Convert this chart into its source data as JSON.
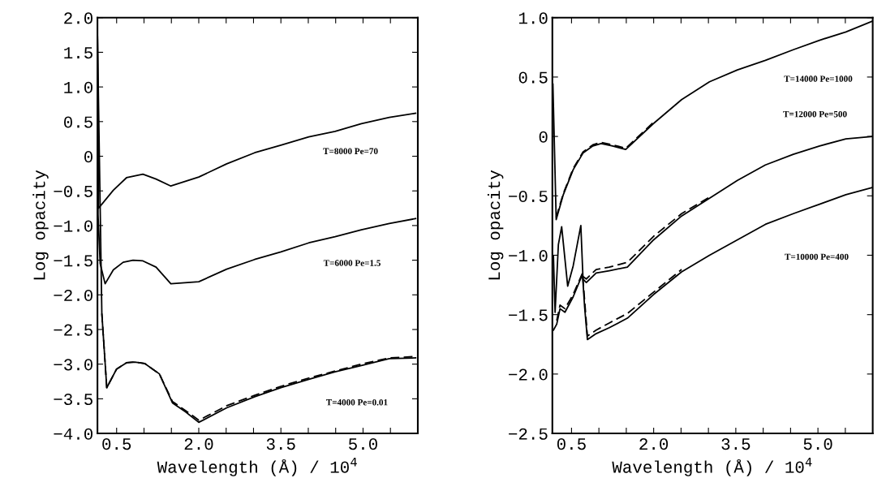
{
  "chart_data": [
    {
      "type": "line",
      "xlabel": "Wavelength (Å) / 10$^{4}$",
      "ylabel": "Log opacity",
      "xlim": [
        0.15,
        6.0
      ],
      "ylim": [
        -4.0,
        2.0
      ],
      "xticks": [
        {
          "value": 0.5,
          "label": "0.5"
        },
        {
          "value": 1.0,
          "label": null
        },
        {
          "value": 1.5,
          "label": null
        },
        {
          "value": 2.0,
          "label": "2.0"
        },
        {
          "value": 2.5,
          "label": null
        },
        {
          "value": 3.0,
          "label": null
        },
        {
          "value": 3.5,
          "label": "3.5"
        },
        {
          "value": 4.0,
          "label": null
        },
        {
          "value": 4.5,
          "label": null
        },
        {
          "value": 5.0,
          "label": "5.0"
        },
        {
          "value": 5.5,
          "label": null
        }
      ],
      "yticks": [
        {
          "value": -4.0,
          "label": "−4.0"
        },
        {
          "value": -3.5,
          "label": "−3.5"
        },
        {
          "value": -3.0,
          "label": "−3.0"
        },
        {
          "value": -2.5,
          "label": "−2.5"
        },
        {
          "value": -2.0,
          "label": "−2.0"
        },
        {
          "value": -1.5,
          "label": "−1.5"
        },
        {
          "value": -1.0,
          "label": "−1.0"
        },
        {
          "value": -0.5,
          "label": "−0.5"
        },
        {
          "value": 0,
          "label": "0"
        },
        {
          "value": 0.5,
          "label": "0.5"
        },
        {
          "value": 1.0,
          "label": "1.0"
        },
        {
          "value": 1.5,
          "label": "1.5"
        },
        {
          "value": 2.0,
          "label": "2.0"
        }
      ],
      "grid": false,
      "legend": false,
      "marker": "none",
      "series": [
        {
          "color": "#000000",
          "line_style": "solid",
          "x": [
            0.15,
            0.17,
            0.44,
            0.68,
            0.98,
            1.22,
            1.49,
            2.0,
            2.51,
            3.02,
            3.5,
            4.01,
            4.49,
            4.97,
            5.48,
            5.96
          ],
          "values": [
            1.75,
            -0.75,
            -0.49,
            -0.31,
            -0.26,
            -0.33,
            -0.43,
            -0.3,
            -0.11,
            0.05,
            0.16,
            0.28,
            0.36,
            0.47,
            0.56,
            0.62
          ]
        },
        {
          "color": "#000000",
          "line_style": "solid",
          "x": [
            0.15,
            0.16,
            0.2,
            0.29,
            0.44,
            0.62,
            0.8,
            0.98,
            1.22,
            1.49,
            2.0,
            2.51,
            3.02,
            3.5,
            4.01,
            4.49,
            4.97,
            5.48,
            5.96
          ],
          "values": [
            1.75,
            -0.84,
            -1.55,
            -1.84,
            -1.64,
            -1.53,
            -1.5,
            -1.51,
            -1.6,
            -1.84,
            -1.81,
            -1.63,
            -1.49,
            -1.38,
            -1.25,
            -1.16,
            -1.06,
            -0.97,
            -0.9
          ]
        },
        {
          "color": "#000000",
          "line_style": "solid",
          "x": [
            0.15,
            0.23,
            0.32,
            0.5,
            0.68,
            0.83,
            1.01,
            1.28,
            1.52,
            1.76,
            2.0,
            2.51,
            3.02,
            3.5,
            4.01,
            4.49,
            4.97,
            5.48,
            5.96
          ],
          "values": [
            1.75,
            -2.27,
            -3.34,
            -3.07,
            -2.98,
            -2.97,
            -2.99,
            -3.14,
            -3.56,
            -3.69,
            -3.84,
            -3.63,
            -3.47,
            -3.34,
            -3.22,
            -3.11,
            -3.02,
            -2.92,
            -2.91
          ]
        },
        {
          "color": "#000000",
          "line_style": "dashed",
          "x": [
            0.23,
            0.32,
            0.5,
            0.68,
            0.83,
            1.01,
            1.28,
            1.52,
            1.76,
            2.0,
            2.51,
            3.02,
            3.5,
            4.01,
            4.49,
            4.97,
            5.48,
            5.96
          ],
          "values": [
            -2.27,
            -3.34,
            -3.07,
            -2.98,
            -2.97,
            -2.99,
            -3.14,
            -3.54,
            -3.67,
            -3.81,
            -3.6,
            -3.45,
            -3.32,
            -3.2,
            -3.1,
            -3.0,
            -2.91,
            -2.89
          ]
        }
      ],
      "annotations": [
        "T=8000 Pe=70",
        "T=6000 Pe=1.5",
        "T=4000 Pe=0.01"
      ]
    },
    {
      "type": "line",
      "xlabel": "Wavelength (Å) / 10$^{4}$",
      "ylabel": "Log opacity",
      "xlim": [
        0.15,
        6.0
      ],
      "ylim": [
        -2.5,
        1.0
      ],
      "xticks": [
        {
          "value": 0.5,
          "label": "0.5"
        },
        {
          "value": 1.0,
          "label": null
        },
        {
          "value": 1.5,
          "label": null
        },
        {
          "value": 2.0,
          "label": "2.0"
        },
        {
          "value": 2.5,
          "label": null
        },
        {
          "value": 3.0,
          "label": null
        },
        {
          "value": 3.5,
          "label": "3.5"
        },
        {
          "value": 4.0,
          "label": null
        },
        {
          "value": 4.5,
          "label": null
        },
        {
          "value": 5.0,
          "label": "5.0"
        },
        {
          "value": 5.5,
          "label": null
        }
      ],
      "yticks": [
        {
          "value": -2.5,
          "label": "−2.5"
        },
        {
          "value": -2.0,
          "label": "−2.0"
        },
        {
          "value": -1.5,
          "label": "−1.5"
        },
        {
          "value": -1.0,
          "label": "−1.0"
        },
        {
          "value": -0.5,
          "label": "−0.5"
        },
        {
          "value": 0,
          "label": "0"
        },
        {
          "value": 0.5,
          "label": "0.5"
        },
        {
          "value": 1.0,
          "label": "1.0"
        }
      ],
      "grid": false,
      "legend": false,
      "marker": "none",
      "series": [
        {
          "color": "#000000",
          "line_style": "solid",
          "x": [
            0.16,
            0.22,
            0.35,
            0.53,
            0.71,
            0.89,
            1.04,
            1.25,
            1.49,
            2.0,
            2.51,
            3.02,
            3.53,
            4.04,
            4.55,
            5.03,
            5.51,
            5.99
          ],
          "values": [
            0.44,
            -0.7,
            -0.49,
            -0.28,
            -0.14,
            -0.08,
            -0.06,
            -0.08,
            -0.11,
            0.11,
            0.31,
            0.46,
            0.56,
            0.64,
            0.73,
            0.81,
            0.88,
            0.97
          ]
        },
        {
          "color": "#000000",
          "line_style": "dashed",
          "x": [
            0.22,
            0.35,
            0.53,
            0.71,
            0.89,
            1.04,
            1.25,
            1.49,
            2.0
          ],
          "values": [
            -0.68,
            -0.48,
            -0.27,
            -0.13,
            -0.07,
            -0.05,
            -0.07,
            -0.1,
            0.12
          ]
        },
        {
          "color": "#000000",
          "line_style": "solid",
          "x": [
            0.17,
            0.2,
            0.26,
            0.32,
            0.43,
            0.53,
            0.67,
            0.71,
            0.77,
            0.95,
            1.19,
            1.52,
            2.0,
            2.51,
            3.02,
            3.53,
            4.04,
            4.55,
            5.03,
            5.51,
            5.99
          ],
          "values": [
            -1.01,
            -1.48,
            -0.91,
            -0.76,
            -1.26,
            -1.09,
            -0.75,
            -1.2,
            -1.23,
            -1.15,
            -1.13,
            -1.1,
            -0.87,
            -0.67,
            -0.52,
            -0.37,
            -0.24,
            -0.15,
            -0.08,
            -0.02,
            0.0
          ]
        },
        {
          "color": "#000000",
          "line_style": "dashed",
          "x": [
            0.71,
            0.77,
            0.95,
            1.19,
            1.52,
            2.0,
            2.51,
            3.02
          ],
          "values": [
            -1.18,
            -1.2,
            -1.12,
            -1.1,
            -1.06,
            -0.84,
            -0.65,
            -0.51
          ]
        },
        {
          "color": "#000000",
          "line_style": "solid",
          "x": [
            0.17,
            0.23,
            0.29,
            0.38,
            0.53,
            0.7,
            0.74,
            0.79,
            0.95,
            1.19,
            1.52,
            2.0,
            2.51,
            3.02,
            3.53,
            4.04,
            4.55,
            5.03,
            5.51,
            5.99
          ],
          "values": [
            -1.63,
            -1.58,
            -1.45,
            -1.48,
            -1.35,
            -1.16,
            -1.44,
            -1.71,
            -1.66,
            -1.61,
            -1.53,
            -1.33,
            -1.14,
            -1.0,
            -0.87,
            -0.74,
            -0.65,
            -0.57,
            -0.49,
            -0.43
          ]
        },
        {
          "color": "#000000",
          "line_style": "dashed",
          "x": [
            0.23,
            0.29,
            0.38,
            0.53,
            0.7,
            0.79,
            0.95,
            1.19,
            1.52,
            2.0,
            2.51
          ],
          "values": [
            -1.55,
            -1.42,
            -1.45,
            -1.33,
            -1.15,
            -1.68,
            -1.63,
            -1.57,
            -1.49,
            -1.31,
            -1.12
          ]
        }
      ],
      "annotations": [
        "T=14000 Pe=1000",
        "T=12000 Pe=500",
        "T=10000 Pe=400"
      ]
    }
  ]
}
